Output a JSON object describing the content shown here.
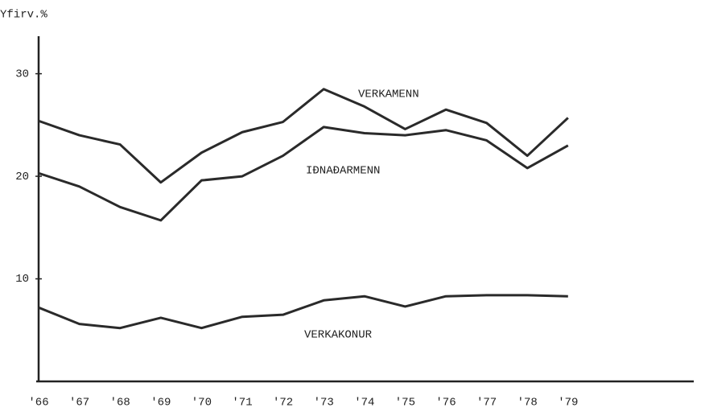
{
  "chart_data": {
    "type": "line",
    "y_axis_label": "Yfirv.%",
    "categories": [
      "'66",
      "'67",
      "'68",
      "'69",
      "'70",
      "'71",
      "'72",
      "'73",
      "'74",
      "'75",
      "'76",
      "'77",
      "'78",
      "'79"
    ],
    "series": [
      {
        "name": "VERKAMENN",
        "color": "#2a2a2a",
        "values": [
          25.4,
          24.0,
          23.1,
          19.4,
          22.3,
          24.3,
          25.3,
          28.5,
          26.8,
          24.6,
          26.5,
          25.2,
          22.0,
          25.7
        ]
      },
      {
        "name": "IÐNAÐARMENN",
        "color": "#2a2a2a",
        "values": [
          20.3,
          19.0,
          17.0,
          15.7,
          19.6,
          20.0,
          22.0,
          24.8,
          24.2,
          24.0,
          24.5,
          23.5,
          20.8,
          23.0
        ]
      },
      {
        "name": "VERKAKONUR",
        "color": "#2a2a2a",
        "values": [
          7.2,
          5.6,
          5.2,
          6.2,
          5.2,
          6.3,
          6.5,
          7.9,
          8.3,
          7.3,
          8.3,
          8.4,
          8.4,
          8.3
        ]
      }
    ],
    "ylim": [
      0,
      33.5
    ],
    "yticks": [
      10,
      20,
      30
    ],
    "grid": false
  }
}
